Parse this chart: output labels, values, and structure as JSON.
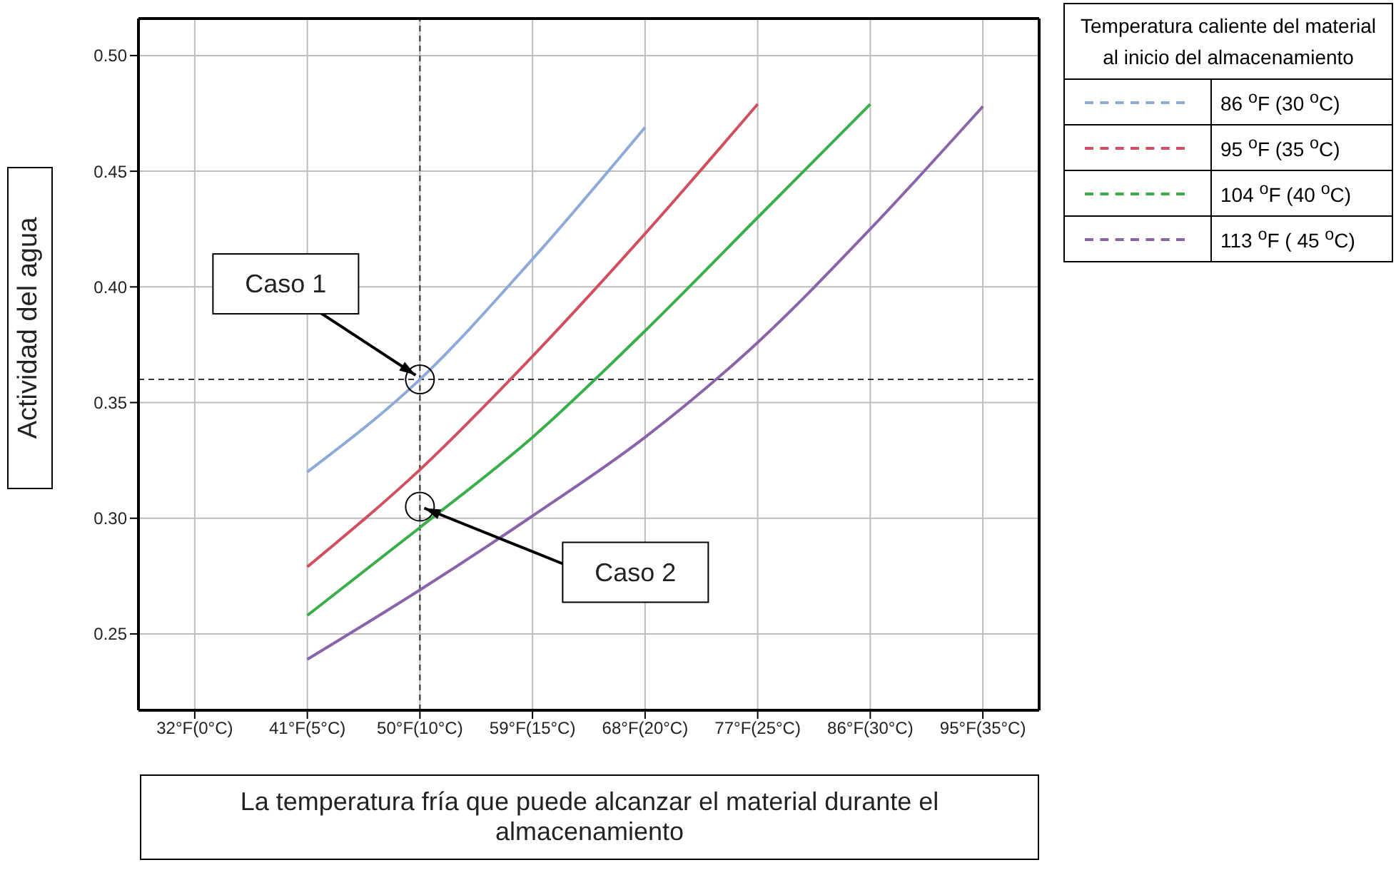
{
  "chart_data": {
    "type": "line",
    "xlabel": "La temperatura fría que puede alcanzar el material durante el almacenamiento",
    "ylabel": "Actividad del agua",
    "legend_title": "Temperatura caliente del material al inicio del almacenamiento",
    "categories": [
      "32°F(0°C)",
      "41°F(5°C)",
      "50°F(10°C)",
      "59°F(15°C)",
      "68°F(20°C)",
      "77°F(25°C)",
      "86°F(30°C)",
      "95°F(35°C)"
    ],
    "ylim": [
      0.217,
      0.516
    ],
    "yticks": [
      {
        "value": 0.25,
        "label": "0.25"
      },
      {
        "value": 0.3,
        "label": "0.30"
      },
      {
        "value": 0.35,
        "label": "0.35"
      },
      {
        "value": 0.4,
        "label": "0.40"
      },
      {
        "value": 0.45,
        "label": "0.45"
      },
      {
        "value": 0.5,
        "label": "0.50"
      }
    ],
    "grid": true,
    "legend": "top right",
    "marker": "none",
    "line_style": "solid",
    "series": [
      {
        "name": "86 $^{o}$F (30 $^{o}$C)",
        "color": "#8eaad8",
        "values": [
          null,
          0.32,
          0.36,
          0.412,
          0.469,
          null,
          null,
          null
        ]
      },
      {
        "name": "95 $^{o}$F (35 $^{o}$C)",
        "color": "#d0505f",
        "values": [
          null,
          0.279,
          0.321,
          0.37,
          0.423,
          0.479,
          null,
          null
        ]
      },
      {
        "name": "104 $^{o}$F (40 $^{o}$C)",
        "color": "#3aae4a",
        "values": [
          null,
          0.258,
          0.296,
          0.335,
          0.381,
          0.43,
          0.479,
          null
        ]
      },
      {
        "name": "113 $^{o}$F ( 45 $^{o}$C)",
        "color": "#8a64a8",
        "values": [
          null,
          0.239,
          0.269,
          0.301,
          0.335,
          0.376,
          0.425,
          0.478
        ]
      }
    ],
    "ref_lines": [
      {
        "axis": "x",
        "value": "50°F(10°C)",
        "color": "#333333",
        "line_style": "dashed"
      },
      {
        "axis": "y",
        "value": 0.36,
        "color": "#333333",
        "line_style": "dashed"
      }
    ],
    "annotations": [
      {
        "text": "Caso 1",
        "x": "50°F(10°C)",
        "y": 0.36
      },
      {
        "text": "Caso 2",
        "x": "50°F(10°C)",
        "y": 0.305
      }
    ]
  }
}
